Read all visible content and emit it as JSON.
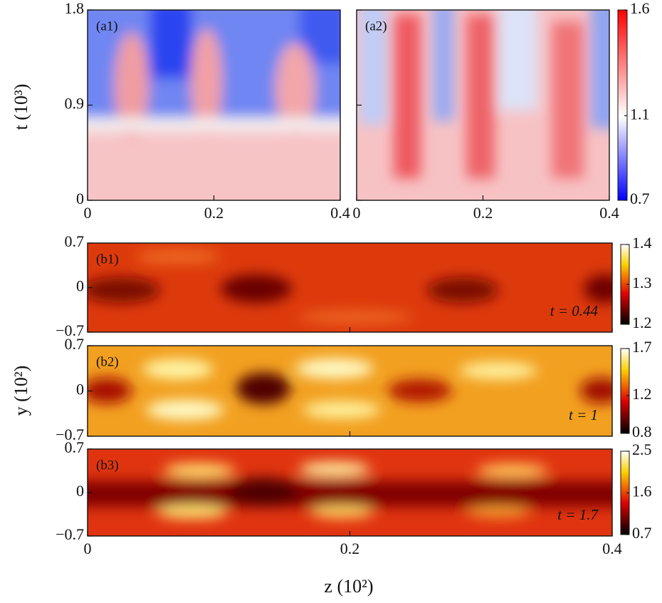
{
  "chart_data": [
    {
      "type": "heatmap",
      "label": "(a1)",
      "ylabel": "t (10³)",
      "xlim": [
        0,
        0.4
      ],
      "xticks": [
        0,
        0.2,
        0.4
      ],
      "ylim": [
        0,
        1.8
      ],
      "yticks": [
        0,
        0.9,
        1.8
      ]
    },
    {
      "type": "heatmap",
      "label": "(a2)",
      "xlim": [
        0,
        0.4
      ],
      "xticks": [
        0,
        0.2,
        0.4
      ],
      "ylim": [
        0,
        1.8
      ],
      "clim": [
        0.7,
        1.6
      ],
      "cticks": [
        0.7,
        1.1,
        1.6
      ],
      "colormap": "bwr"
    },
    {
      "type": "heatmap",
      "label": "(b1)",
      "annotation": "t = 0.44",
      "xlim": [
        0,
        0.4
      ],
      "ylim": [
        -0.7,
        0.7
      ],
      "yticks": [
        {
          "value": -0.7,
          "label": "−0.7"
        },
        0,
        0.7
      ],
      "clim": [
        1.2,
        1.4
      ],
      "cticks": [
        1.2,
        1.3,
        1.4
      ],
      "colormap": "hot"
    },
    {
      "type": "heatmap",
      "label": "(b2)",
      "ylabel": "y (10²)",
      "annotation": "t = 1",
      "xlim": [
        0,
        0.4
      ],
      "ylim": [
        -0.7,
        0.7
      ],
      "yticks": [
        {
          "value": -0.7,
          "label": "−0.7"
        },
        0,
        0.7
      ],
      "clim": [
        0.8,
        1.7
      ],
      "cticks": [
        0.8,
        1.2,
        1.7
      ],
      "colormap": "hot"
    },
    {
      "type": "heatmap",
      "label": "(b3)",
      "xlabel": "z (10²)",
      "annotation": "t = 1.7",
      "xlim": [
        0,
        0.4
      ],
      "xticks": [
        0,
        0.2,
        0.4
      ],
      "ylim": [
        -0.7,
        0.7
      ],
      "yticks": [
        {
          "value": -0.7,
          "label": "−0.7"
        },
        0,
        0.7
      ],
      "clim": [
        0.7,
        2.5
      ],
      "cticks": [
        0.7,
        1.6,
        2.5
      ],
      "colormap": "hot"
    }
  ]
}
